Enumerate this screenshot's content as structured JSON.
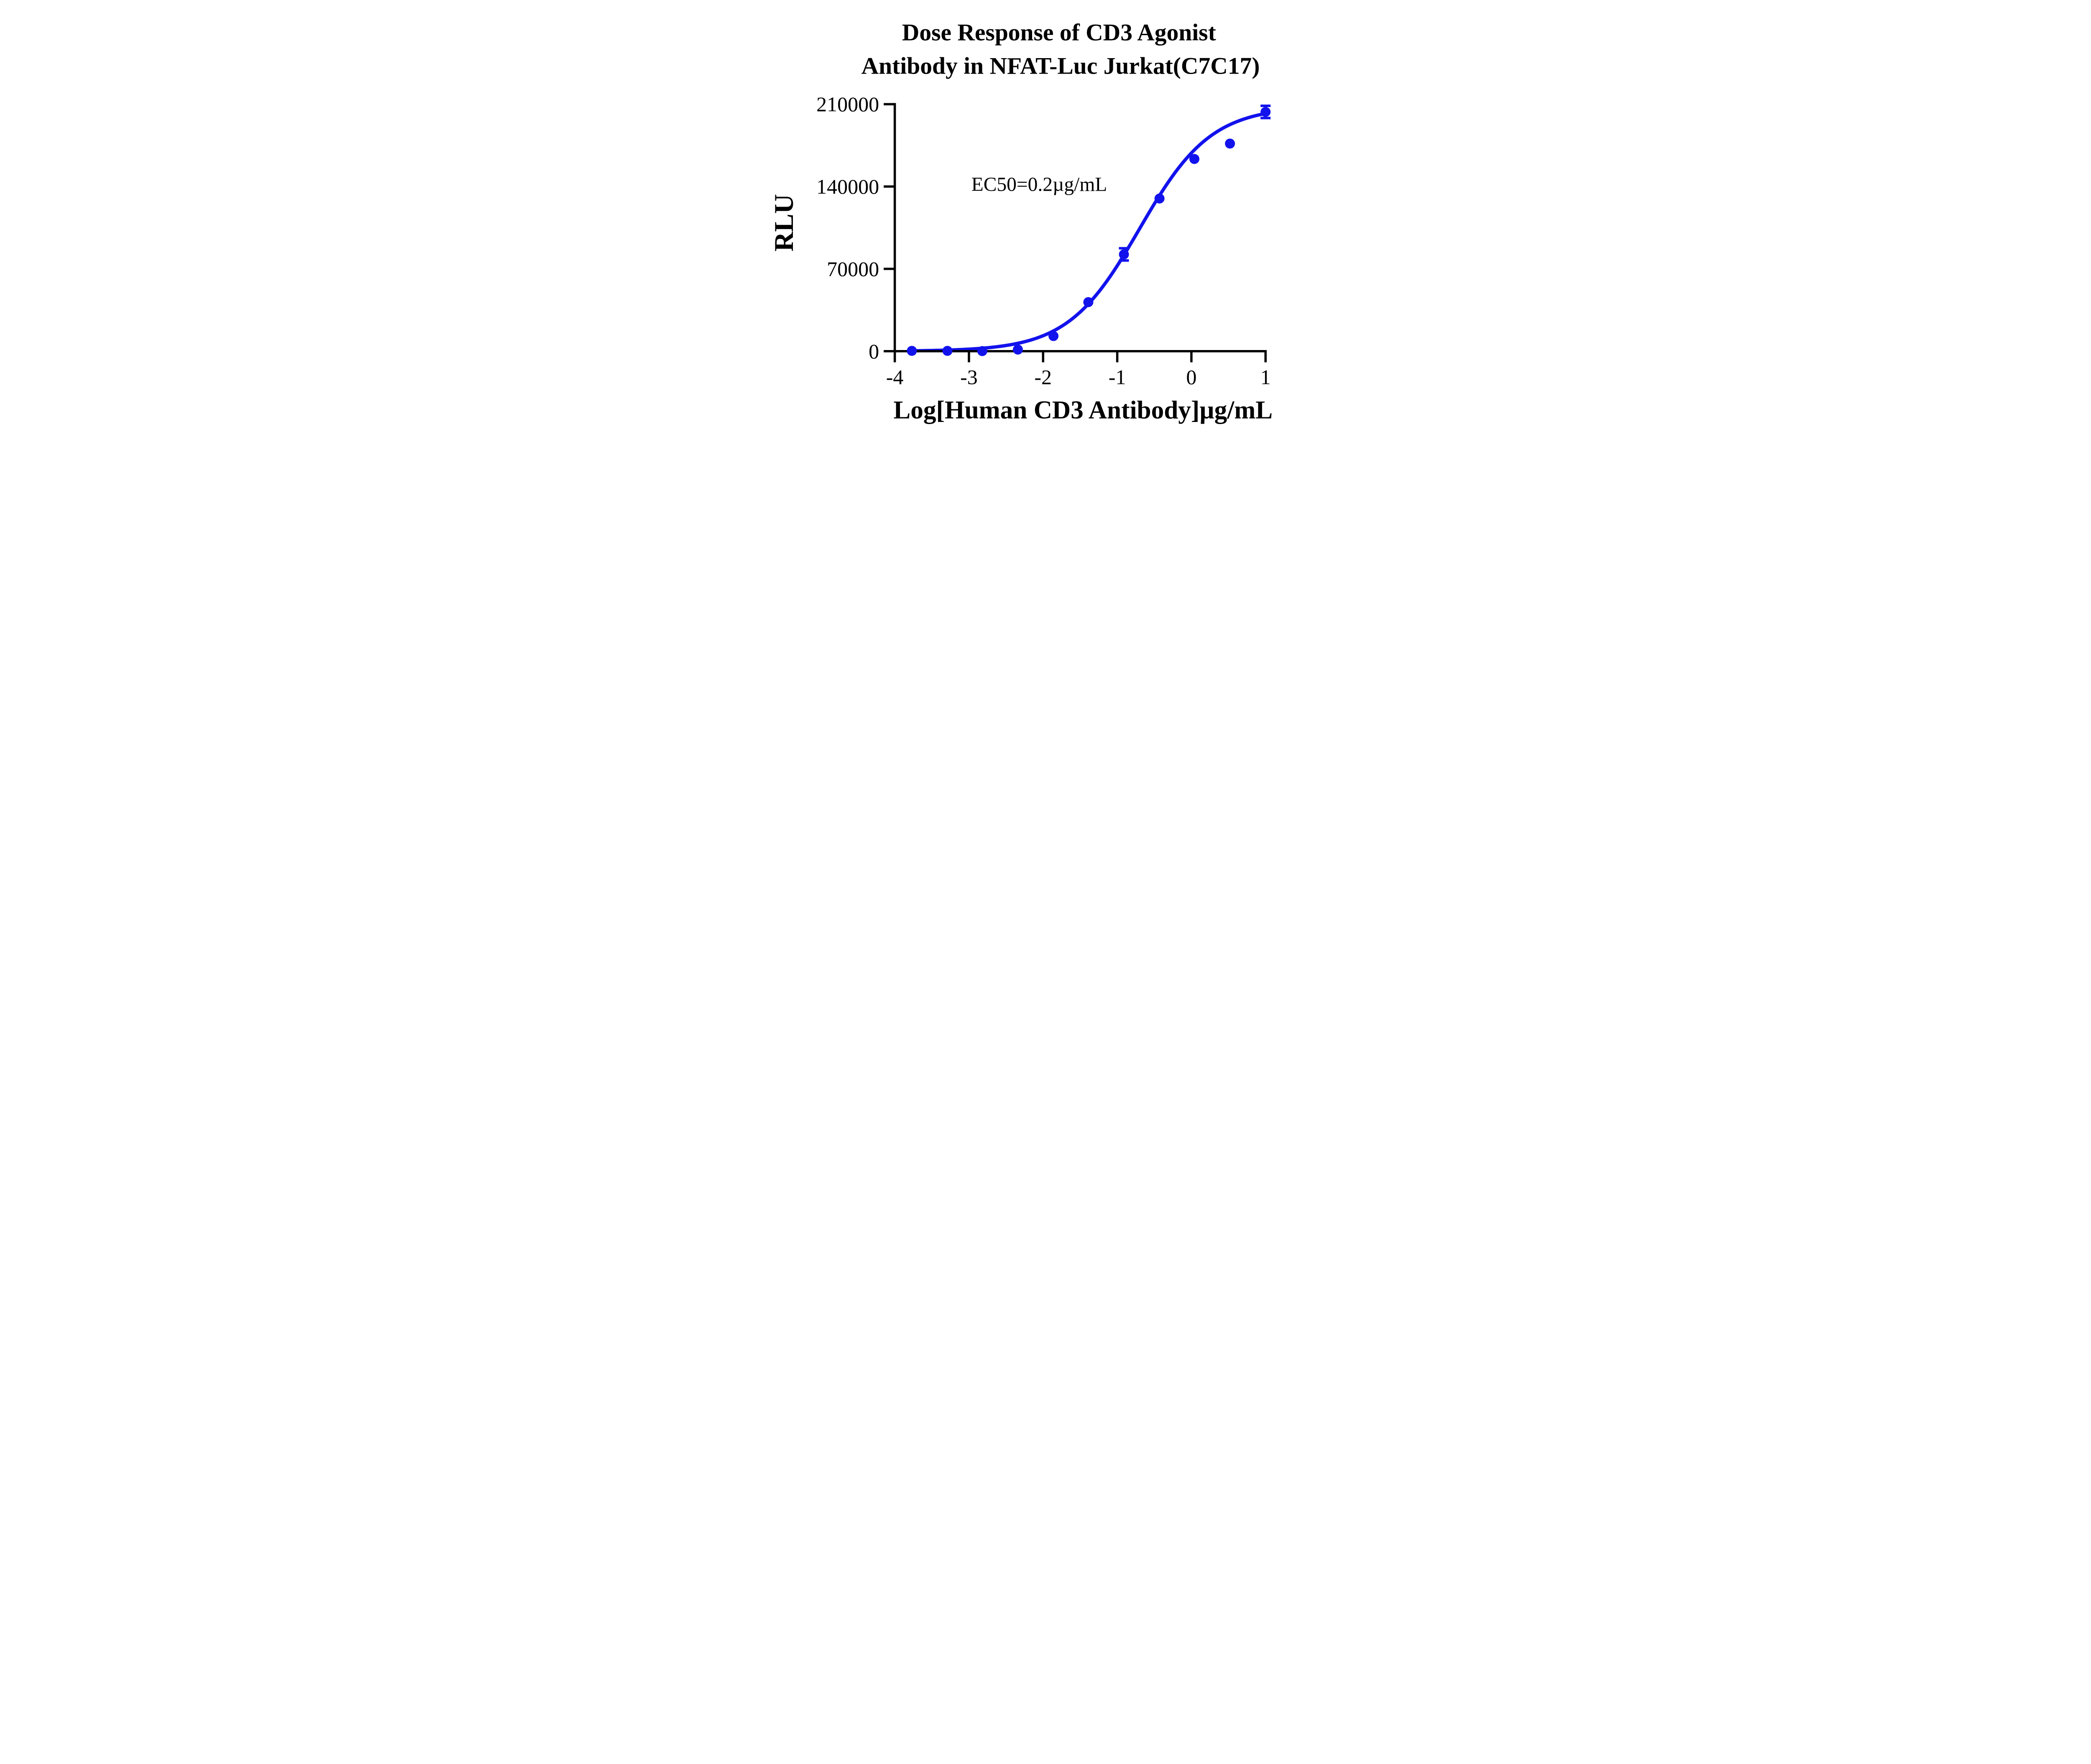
{
  "chart_data": {
    "type": "scatter",
    "title_line1": "Dose Response of CD3 Agonist",
    "title_line2": "Antibody in NFAT-Luc Jurkat(C7C17)",
    "ylabel": "RLU",
    "xlabel": "Log[Human CD3 Antibody]µg/mL",
    "annotation": "EC50=0.2µg/mL",
    "x_ticks": [
      "-4",
      "-3",
      "-2",
      "-1",
      "0",
      "1"
    ],
    "x_tick_values": [
      -4,
      -3,
      -2,
      -1,
      0,
      1
    ],
    "y_ticks": [
      "0",
      "70000",
      "140000",
      "210000"
    ],
    "y_tick_values": [
      0,
      70000,
      140000,
      210000
    ],
    "xlim": [
      -4,
      1
    ],
    "ylim": [
      0,
      210000
    ],
    "grid": false,
    "legend": "none",
    "series": [
      {
        "name": "Human CD3 Antibody",
        "x_log": [
          -3.77,
          -3.29,
          -2.82,
          -2.34,
          -1.86,
          -1.39,
          -0.91,
          -0.43,
          0.04,
          0.52,
          1.0
        ],
        "y_rlu": [
          300,
          300,
          100,
          1400,
          12900,
          41700,
          82300,
          129800,
          163400,
          176500,
          203400
        ],
        "y_sem": [
          0,
          0,
          0,
          0,
          0,
          0,
          5200,
          0,
          0,
          0,
          5200
        ]
      }
    ],
    "fit": {
      "model": "4PL",
      "bottom": 0,
      "top": 208000,
      "log_ec50": -0.7,
      "hill": 0.9,
      "ec50": "0.2µg/mL"
    },
    "marker_color": "#1212ED",
    "axis_color": "#000000"
  }
}
